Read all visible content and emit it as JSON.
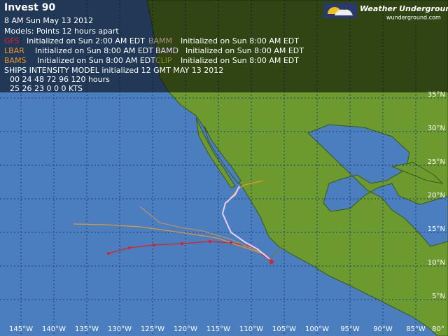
{
  "header": {
    "title": "Invest 90",
    "date": "8 AM Sun May 13 2012",
    "models_note": "Models: Points 12 hours apart"
  },
  "models": [
    {
      "name": "GFS",
      "init": "Initialized on Sun 2:00 AM EDT"
    },
    {
      "name": "BAMM",
      "init": "Initialized on Sun 8:00 AM EDT"
    },
    {
      "name": "LBAR",
      "init": "Initialized on Sun 8:00 AM EDT"
    },
    {
      "name": "BAMD",
      "init": "Initialized on Sun 8:00 AM EDT"
    },
    {
      "name": "BAMS",
      "init": "Initialized on Sun 8:00 AM EDT"
    },
    {
      "name": "CLIP",
      "init": "Initialized on Sun 8:00 AM EDT"
    }
  ],
  "ships": {
    "title": "SHIPS INTENSITY MODEL initialized 12 GMT MAY 13 2012",
    "hours": "00 24 48 72 96 120 hours",
    "kts": "25 26 23 0 0 0 KTS"
  },
  "logo": {
    "name": "Weather Underground",
    "url": "wunderground.com"
  },
  "lat_labels": [
    "35°N",
    "30°N",
    "25°N",
    "20°N",
    "15°N",
    "10°N",
    "5°N"
  ],
  "lon_labels": [
    "145°W",
    "140°W",
    "135°W",
    "130°W",
    "125°W",
    "120°W",
    "115°W",
    "110°W",
    "105°W",
    "100°W",
    "95°W",
    "90°W",
    "85°W",
    "80°"
  ]
}
